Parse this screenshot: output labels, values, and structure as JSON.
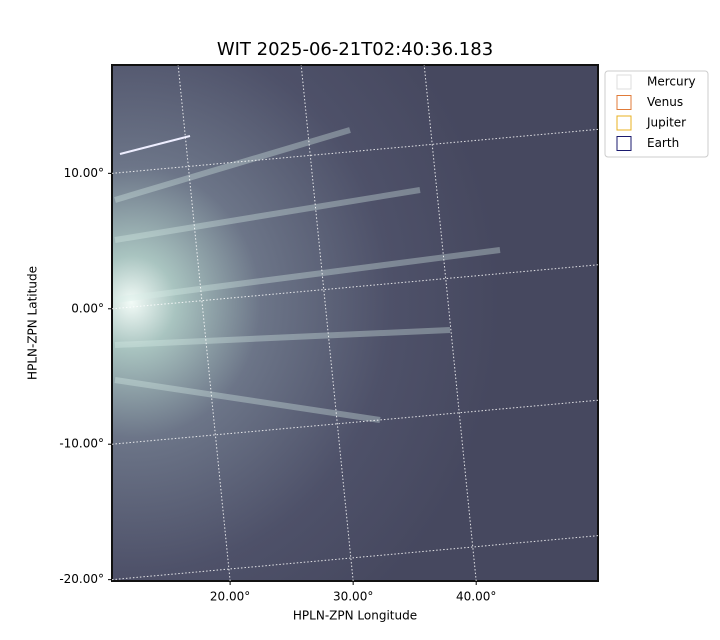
{
  "chart_data": {
    "type": "image",
    "title": "WIT 2025-06-21T02:40:36.183",
    "x_label": "HPLN-ZPN Longitude",
    "y_label": "HPLN-ZPN Latitude",
    "xlim": [
      10.4,
      49.9
    ],
    "ylim": [
      -20.1,
      18.0
    ],
    "xticks": [
      {
        "value": 20,
        "label": "20.00°"
      },
      {
        "value": 30,
        "label": "30.00°"
      },
      {
        "value": 40,
        "label": "40.00°"
      }
    ],
    "yticks": [
      {
        "value": 10,
        "label": "10.00°"
      },
      {
        "value": 0,
        "label": "0.00°"
      },
      {
        "value": -10,
        "label": "-10.00°"
      },
      {
        "value": -20,
        "label": "-20.00°"
      }
    ],
    "grid": true,
    "legend_position": "upper right outside",
    "legend": [
      {
        "name": "Mercury",
        "color": "#dddddd"
      },
      {
        "name": "Venus",
        "color": "#e07b39"
      },
      {
        "name": "Jupiter",
        "color": "#e8b020"
      },
      {
        "name": "Earth",
        "color": "#1a1a6e"
      }
    ]
  }
}
